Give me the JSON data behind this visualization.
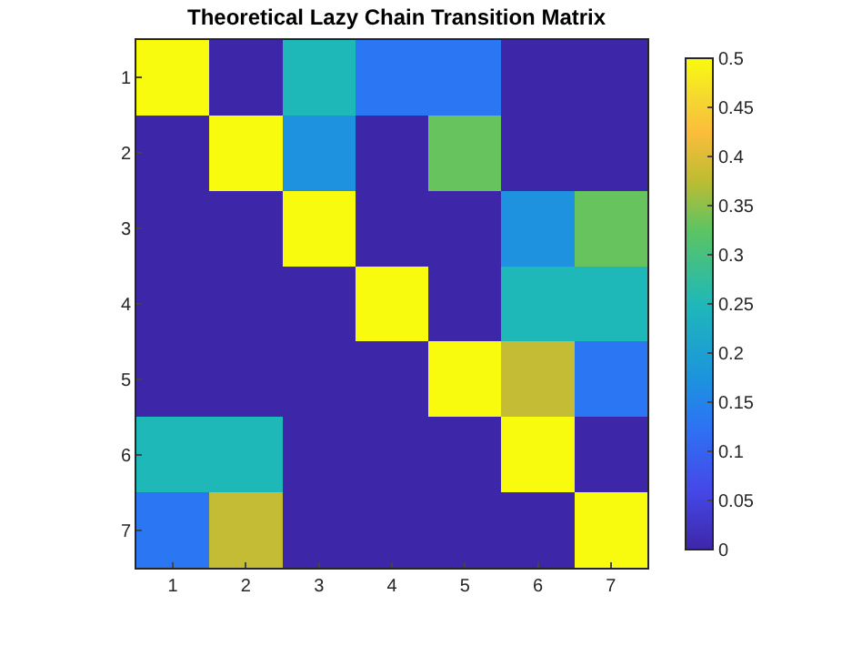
{
  "chart_data": {
    "type": "heatmap",
    "title": "Theoretical Lazy Chain Transition Matrix",
    "categories": [
      "1",
      "2",
      "3",
      "4",
      "5",
      "6",
      "7"
    ],
    "y_categories": [
      "1",
      "2",
      "3",
      "4",
      "5",
      "6",
      "7"
    ],
    "cells": [
      [
        0.5,
        0,
        0.25,
        0.13,
        0.13,
        0,
        0
      ],
      [
        0,
        0.5,
        0.17,
        0,
        0.33,
        0,
        0
      ],
      [
        0,
        0,
        0.5,
        0,
        0,
        0.17,
        0.33
      ],
      [
        0,
        0,
        0,
        0.5,
        0,
        0.25,
        0.25
      ],
      [
        0,
        0,
        0,
        0,
        0.5,
        0.38,
        0.13
      ],
      [
        0.25,
        0.25,
        0,
        0,
        0,
        0.5,
        0
      ],
      [
        0.13,
        0.38,
        0,
        0,
        0,
        0,
        0.5
      ]
    ],
    "clim": [
      0,
      0.5
    ],
    "cticks": [
      0,
      0.05,
      0.1,
      0.15,
      0.2,
      0.25,
      0.3,
      0.35,
      0.4,
      0.45,
      0.5
    ]
  }
}
